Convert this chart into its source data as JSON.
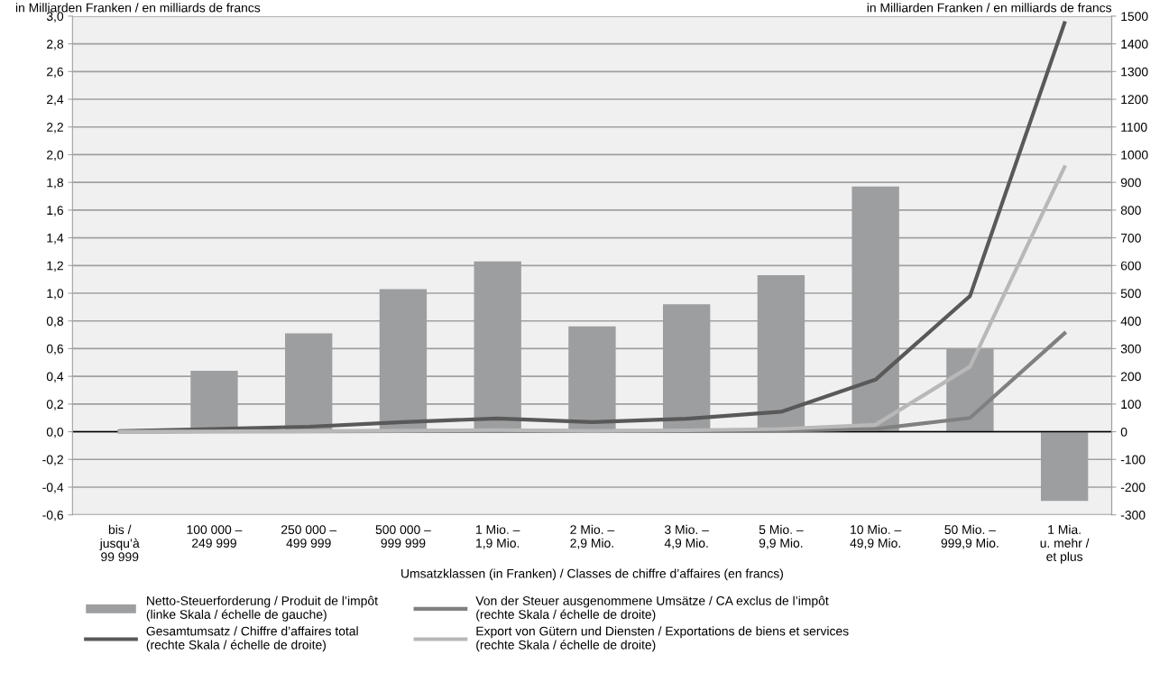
{
  "chart_data": {
    "type": "bar",
    "categories": [
      "bis /\njusqu’à\n99 999",
      "100 000 –\n249 999",
      "250 000 –\n499 999",
      "500 000 –\n999 999",
      "1 Mio. –\n1,9 Mio.",
      "2 Mio. –\n2,9 Mio.",
      "3 Mio. –\n4,9 Mio.",
      "5 Mio. –\n9,9 Mio.",
      "10 Mio. –\n49,9 Mio.",
      "50 Mio. –\n999,9 Mio.",
      "1 Mia.\nu. mehr /\net plus"
    ],
    "series": [
      {
        "name": "Netto-Steuerforderung / Produit de l’impôt\n(linke Skala / échelle de gauche)",
        "color": "#9d9ea0",
        "values": [
          0.0,
          0.44,
          0.71,
          1.03,
          1.23,
          0.76,
          0.92,
          1.13,
          1.77,
          0.6,
          -0.5
        ]
      },
      {
        "name": "Gesamtumsatz / Chiffre d’affaires total\n(rechte Skala / échelle de droite)",
        "type": "line",
        "axis": "y2",
        "color": "#595959",
        "values": [
          2,
          10,
          18,
          35,
          48,
          35,
          47,
          72,
          188,
          490,
          1475
        ]
      },
      {
        "name": "Von der Steuer ausgenommene Umsätze / CA exclus de l’impôt\n(rechte Skala / échelle de droite)",
        "type": "line",
        "axis": "y2",
        "color": "#808080",
        "values": [
          0,
          1,
          1,
          2,
          3,
          2,
          2,
          4,
          10,
          50,
          355
        ]
      },
      {
        "name": "Export von Gütern und Diensten / Exportations de biens et services\n(rechte Skala / échelle de droite)",
        "type": "line",
        "axis": "y2",
        "color": "#b8b8b8",
        "values": [
          0,
          1,
          2,
          4,
          6,
          3,
          5,
          10,
          25,
          235,
          955
        ]
      }
    ],
    "xlabel": "Umsatzklassen (in Franken) / Classes de chiffre d’affaires (en francs)",
    "ylabel": "in Milliarden Franken / en milliards de francs",
    "y2label": "in Milliarden Franken / en milliards de francs",
    "ylim": [
      -0.6,
      3.0
    ],
    "yticks": [
      {
        "value": -0.6,
        "label": "-0,6"
      },
      {
        "value": -0.4,
        "label": "-0,4"
      },
      {
        "value": -0.2,
        "label": "-0,2"
      },
      {
        "value": 0.0,
        "label": "0,0"
      },
      {
        "value": 0.2,
        "label": "0,2"
      },
      {
        "value": 0.4,
        "label": "0,4"
      },
      {
        "value": 0.6,
        "label": "0,6"
      },
      {
        "value": 0.8,
        "label": "0,8"
      },
      {
        "value": 1.0,
        "label": "1,0"
      },
      {
        "value": 1.2,
        "label": "1,2"
      },
      {
        "value": 1.4,
        "label": "1,4"
      },
      {
        "value": 1.6,
        "label": "1,6"
      },
      {
        "value": 1.8,
        "label": "1,8"
      },
      {
        "value": 2.0,
        "label": "2,0"
      },
      {
        "value": 2.2,
        "label": "2,2"
      },
      {
        "value": 2.4,
        "label": "2,4"
      },
      {
        "value": 2.6,
        "label": "2,6"
      },
      {
        "value": 2.8,
        "label": "2,8"
      },
      {
        "value": 3.0,
        "label": "3,0"
      }
    ],
    "y2lim": [
      -300,
      1500
    ],
    "y2ticks": [
      -300,
      -200,
      -100,
      0,
      100,
      200,
      300,
      400,
      500,
      600,
      700,
      800,
      900,
      1000,
      1100,
      1200,
      1300,
      1400,
      1500
    ],
    "grid": "y",
    "legend": "bottom",
    "line_style": "solid",
    "marker": "none"
  }
}
